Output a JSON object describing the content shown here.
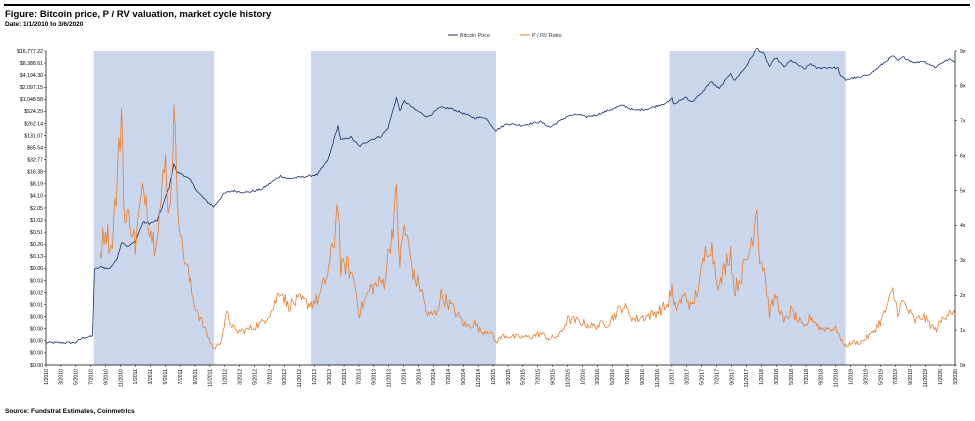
{
  "title": "Figure: Bitcoin price, P / RV valuation, market cycle history",
  "subtitle": "Date: 1/1/2010 to 3/6/2020",
  "source": "Source: Fundstrat Estimates, Coinmetrics",
  "chart_data": {
    "type": "line",
    "legend_position": "top-center",
    "grid": false,
    "left_axis": {
      "scale": "log2",
      "tick_labels": [
        "$0.00",
        "$0.00",
        "$0.00",
        "$0.00",
        "$0.00",
        "$0.01",
        "$0.02",
        "$0.03",
        "$0.06",
        "$0.13",
        "$0.26",
        "$0.51",
        "$1.02",
        "$2.05",
        "$4.10",
        "$8.19",
        "$16.38",
        "$32.77",
        "$65.54",
        "$131.07",
        "$262.14",
        "$524.29",
        "$1,048.58",
        "$2,097.15",
        "$4,194.30",
        "$8,388.61",
        "$16,777.22"
      ]
    },
    "right_axis": {
      "ylim": [
        0,
        9
      ],
      "tick_labels": [
        "0x",
        "1x",
        "2x",
        "3x",
        "4x",
        "5x",
        "6x",
        "7x",
        "8x",
        "9x"
      ]
    },
    "x_range": [
      "2010-01-01",
      "2020-03-06"
    ],
    "x_tick_labels": [
      "1/2010",
      "3/2010",
      "5/2010",
      "7/2010",
      "9/2010",
      "11/2010",
      "1/2011",
      "3/2011",
      "5/2011",
      "7/2011",
      "9/2011",
      "11/2011",
      "1/2012",
      "3/2012",
      "5/2012",
      "7/2012",
      "9/2012",
      "11/2012",
      "1/2013",
      "3/2013",
      "5/2013",
      "7/2013",
      "9/2013",
      "11/2013",
      "1/2014",
      "3/2014",
      "5/2014",
      "7/2014",
      "9/2014",
      "11/2014",
      "1/2015",
      "3/2015",
      "5/2015",
      "7/2015",
      "9/2015",
      "11/2015",
      "1/2016",
      "3/2016",
      "5/2016",
      "7/2016",
      "9/2016",
      "11/2016",
      "1/2017",
      "3/2017",
      "5/2017",
      "7/2017",
      "9/2017",
      "11/2017",
      "1/2018",
      "3/2018",
      "5/2018",
      "7/2018",
      "9/2018",
      "11/2018",
      "1/2019",
      "3/2019",
      "5/2019",
      "7/2019",
      "9/2019",
      "11/2019",
      "1/2020",
      "3/2020"
    ],
    "shaded_periods": [
      {
        "start": "2010-07-15",
        "end": "2011-11-20"
      },
      {
        "start": "2012-12-20",
        "end": "2015-01-15"
      },
      {
        "start": "2016-12-25",
        "end": "2018-12-15"
      }
    ],
    "series": [
      {
        "name": "Bitcoin Price",
        "axis": "left",
        "color": "#1f2f6b",
        "points": [
          [
            "2010-01-01",
            0.0009
          ],
          [
            "2010-05-01",
            0.0009
          ],
          [
            "2010-06-01",
            0.0012
          ],
          [
            "2010-07-10",
            0.0013
          ],
          [
            "2010-07-18",
            0.06
          ],
          [
            "2010-08-15",
            0.07
          ],
          [
            "2010-09-15",
            0.062
          ],
          [
            "2010-10-15",
            0.1
          ],
          [
            "2010-11-08",
            0.3
          ],
          [
            "2010-12-01",
            0.22
          ],
          [
            "2011-01-01",
            0.3
          ],
          [
            "2011-02-01",
            0.9
          ],
          [
            "2011-03-01",
            0.85
          ],
          [
            "2011-04-01",
            1.0
          ],
          [
            "2011-04-25",
            2.5
          ],
          [
            "2011-05-20",
            7.0
          ],
          [
            "2011-06-08",
            26
          ],
          [
            "2011-06-20",
            16
          ],
          [
            "2011-07-15",
            14
          ],
          [
            "2011-08-15",
            10
          ],
          [
            "2011-09-15",
            5
          ],
          [
            "2011-10-20",
            3
          ],
          [
            "2011-11-18",
            2.2
          ],
          [
            "2011-12-31",
            4.7
          ],
          [
            "2012-02-01",
            5.5
          ],
          [
            "2012-04-01",
            5
          ],
          [
            "2012-06-01",
            6
          ],
          [
            "2012-08-17",
            13
          ],
          [
            "2012-09-15",
            11
          ],
          [
            "2012-11-30",
            12.5
          ],
          [
            "2013-01-15",
            14
          ],
          [
            "2013-02-28",
            33
          ],
          [
            "2013-04-09",
            230
          ],
          [
            "2013-04-20",
            100
          ],
          [
            "2013-06-01",
            120
          ],
          [
            "2013-07-05",
            70
          ],
          [
            "2013-08-15",
            100
          ],
          [
            "2013-10-01",
            125
          ],
          [
            "2013-10-30",
            200
          ],
          [
            "2013-12-04",
            1150
          ],
          [
            "2013-12-18",
            550
          ],
          [
            "2014-01-05",
            950
          ],
          [
            "2014-02-15",
            600
          ],
          [
            "2014-04-10",
            380
          ],
          [
            "2014-06-01",
            650
          ],
          [
            "2014-07-15",
            620
          ],
          [
            "2014-09-01",
            470
          ],
          [
            "2014-10-20",
            360
          ],
          [
            "2014-12-01",
            375
          ],
          [
            "2015-01-14",
            175
          ],
          [
            "2015-03-01",
            260
          ],
          [
            "2015-05-01",
            235
          ],
          [
            "2015-07-15",
            290
          ],
          [
            "2015-08-24",
            210
          ],
          [
            "2015-11-04",
            400
          ],
          [
            "2015-12-20",
            440
          ],
          [
            "2016-01-15",
            380
          ],
          [
            "2016-03-01",
            430
          ],
          [
            "2016-06-17",
            750
          ],
          [
            "2016-08-03",
            550
          ],
          [
            "2016-10-01",
            615
          ],
          [
            "2016-12-20",
            900
          ],
          [
            "2017-01-04",
            1100
          ],
          [
            "2017-01-12",
            780
          ],
          [
            "2017-03-01",
            1200
          ],
          [
            "2017-03-25",
            900
          ],
          [
            "2017-05-01",
            1400
          ],
          [
            "2017-06-11",
            2900
          ],
          [
            "2017-07-16",
            1900
          ],
          [
            "2017-09-01",
            4800
          ],
          [
            "2017-09-15",
            3000
          ],
          [
            "2017-11-01",
            6700
          ],
          [
            "2017-12-17",
            19500
          ],
          [
            "2018-01-15",
            13800
          ],
          [
            "2018-02-06",
            6900
          ],
          [
            "2018-03-05",
            11500
          ],
          [
            "2018-04-06",
            6600
          ],
          [
            "2018-05-05",
            9800
          ],
          [
            "2018-06-29",
            5900
          ],
          [
            "2018-07-25",
            8200
          ],
          [
            "2018-08-15",
            6300
          ],
          [
            "2018-10-15",
            6500
          ],
          [
            "2018-11-14",
            6200
          ],
          [
            "2018-11-25",
            3900
          ],
          [
            "2018-12-15",
            3200
          ],
          [
            "2019-01-15",
            3600
          ],
          [
            "2019-02-15",
            3650
          ],
          [
            "2019-04-02",
            4900
          ],
          [
            "2019-05-15",
            8000
          ],
          [
            "2019-06-26",
            12800
          ],
          [
            "2019-07-16",
            9500
          ],
          [
            "2019-08-06",
            11800
          ],
          [
            "2019-09-25",
            8500
          ],
          [
            "2019-10-26",
            9500
          ],
          [
            "2019-12-17",
            6600
          ],
          [
            "2020-01-14",
            8800
          ],
          [
            "2020-02-13",
            10300
          ],
          [
            "2020-03-06",
            9100
          ]
        ]
      },
      {
        "name": "P / RV Ratio",
        "axis": "right",
        "color": "#ee7d2b",
        "points": [
          [
            "2010-08-10",
            3.2
          ],
          [
            "2010-09-01",
            4.0
          ],
          [
            "2010-09-25",
            3.3
          ],
          [
            "2010-10-20",
            5.3
          ],
          [
            "2010-11-06",
            7.4
          ],
          [
            "2010-11-20",
            4.0
          ],
          [
            "2010-12-10",
            4.3
          ],
          [
            "2011-01-01",
            3.4
          ],
          [
            "2011-01-20",
            4.5
          ],
          [
            "2011-02-10",
            5.1
          ],
          [
            "2011-03-01",
            4.0
          ],
          [
            "2011-03-20",
            3.5
          ],
          [
            "2011-04-15",
            4.6
          ],
          [
            "2011-05-05",
            5.8
          ],
          [
            "2011-05-20",
            4.3
          ],
          [
            "2011-06-08",
            7.0
          ],
          [
            "2011-06-25",
            4.8
          ],
          [
            "2011-07-10",
            3.4
          ],
          [
            "2011-08-01",
            2.8
          ],
          [
            "2011-08-25",
            1.9
          ],
          [
            "2011-09-20",
            1.4
          ],
          [
            "2011-10-20",
            0.9
          ],
          [
            "2011-11-18",
            0.45
          ],
          [
            "2011-12-15",
            0.65
          ],
          [
            "2012-01-10",
            1.45
          ],
          [
            "2012-02-15",
            0.95
          ],
          [
            "2012-04-01",
            1.0
          ],
          [
            "2012-06-01",
            1.2
          ],
          [
            "2012-07-15",
            1.6
          ],
          [
            "2012-08-17",
            2.2
          ],
          [
            "2012-09-15",
            1.7
          ],
          [
            "2012-11-01",
            1.85
          ],
          [
            "2012-12-15",
            1.75
          ],
          [
            "2013-01-20",
            1.9
          ],
          [
            "2013-02-25",
            2.6
          ],
          [
            "2013-03-25",
            3.6
          ],
          [
            "2013-04-09",
            4.9
          ],
          [
            "2013-04-20",
            2.7
          ],
          [
            "2013-05-15",
            2.9
          ],
          [
            "2013-06-15",
            2.4
          ],
          [
            "2013-07-05",
            1.5
          ],
          [
            "2013-08-20",
            2.2
          ],
          [
            "2013-10-15",
            2.4
          ],
          [
            "2013-11-15",
            3.8
          ],
          [
            "2013-12-04",
            4.8
          ],
          [
            "2013-12-18",
            2.9
          ],
          [
            "2014-01-05",
            4.0
          ],
          [
            "2014-02-15",
            2.5
          ],
          [
            "2014-03-15",
            2.2
          ],
          [
            "2014-04-10",
            1.4
          ],
          [
            "2014-05-15",
            1.5
          ],
          [
            "2014-06-05",
            2.0
          ],
          [
            "2014-07-15",
            1.7
          ],
          [
            "2014-09-15",
            1.1
          ],
          [
            "2014-10-20",
            1.2
          ],
          [
            "2014-11-15",
            0.95
          ],
          [
            "2014-12-20",
            1.0
          ],
          [
            "2015-01-14",
            0.65
          ],
          [
            "2015-02-15",
            0.85
          ],
          [
            "2015-04-01",
            0.8
          ],
          [
            "2015-06-01",
            0.8
          ],
          [
            "2015-07-15",
            0.9
          ],
          [
            "2015-08-24",
            0.75
          ],
          [
            "2015-10-01",
            0.85
          ],
          [
            "2015-11-04",
            1.3
          ],
          [
            "2015-12-20",
            1.25
          ],
          [
            "2016-02-15",
            1.1
          ],
          [
            "2016-04-15",
            1.2
          ],
          [
            "2016-06-17",
            1.7
          ],
          [
            "2016-08-03",
            1.3
          ],
          [
            "2016-10-15",
            1.45
          ],
          [
            "2016-12-15",
            1.7
          ],
          [
            "2017-01-04",
            2.2
          ],
          [
            "2017-01-12",
            1.6
          ],
          [
            "2017-03-01",
            2.0
          ],
          [
            "2017-03-25",
            1.6
          ],
          [
            "2017-05-01",
            2.5
          ],
          [
            "2017-05-25",
            3.4
          ],
          [
            "2017-06-11",
            3.5
          ],
          [
            "2017-07-16",
            2.2
          ],
          [
            "2017-08-15",
            3.0
          ],
          [
            "2017-09-01",
            3.3
          ],
          [
            "2017-09-15",
            2.1
          ],
          [
            "2017-10-15",
            2.6
          ],
          [
            "2017-11-15",
            3.2
          ],
          [
            "2017-12-05",
            4.0
          ],
          [
            "2017-12-17",
            4.6
          ],
          [
            "2017-12-28",
            3.1
          ],
          [
            "2018-01-15",
            2.8
          ],
          [
            "2018-02-06",
            1.5
          ],
          [
            "2018-03-05",
            2.0
          ],
          [
            "2018-04-06",
            1.2
          ],
          [
            "2018-05-05",
            1.55
          ],
          [
            "2018-06-29",
            1.05
          ],
          [
            "2018-07-25",
            1.4
          ],
          [
            "2018-09-01",
            1.05
          ],
          [
            "2018-10-15",
            1.05
          ],
          [
            "2018-11-14",
            1.0
          ],
          [
            "2018-11-25",
            0.7
          ],
          [
            "2018-12-15",
            0.55
          ],
          [
            "2019-01-15",
            0.65
          ],
          [
            "2019-02-15",
            0.65
          ],
          [
            "2019-04-02",
            0.9
          ],
          [
            "2019-05-15",
            1.35
          ],
          [
            "2019-06-26",
            2.1
          ],
          [
            "2019-07-16",
            1.55
          ],
          [
            "2019-08-06",
            1.8
          ],
          [
            "2019-09-25",
            1.25
          ],
          [
            "2019-10-26",
            1.4
          ],
          [
            "2019-12-17",
            1.0
          ],
          [
            "2020-01-14",
            1.3
          ],
          [
            "2020-02-13",
            1.6
          ],
          [
            "2020-03-06",
            1.45
          ]
        ]
      }
    ]
  }
}
